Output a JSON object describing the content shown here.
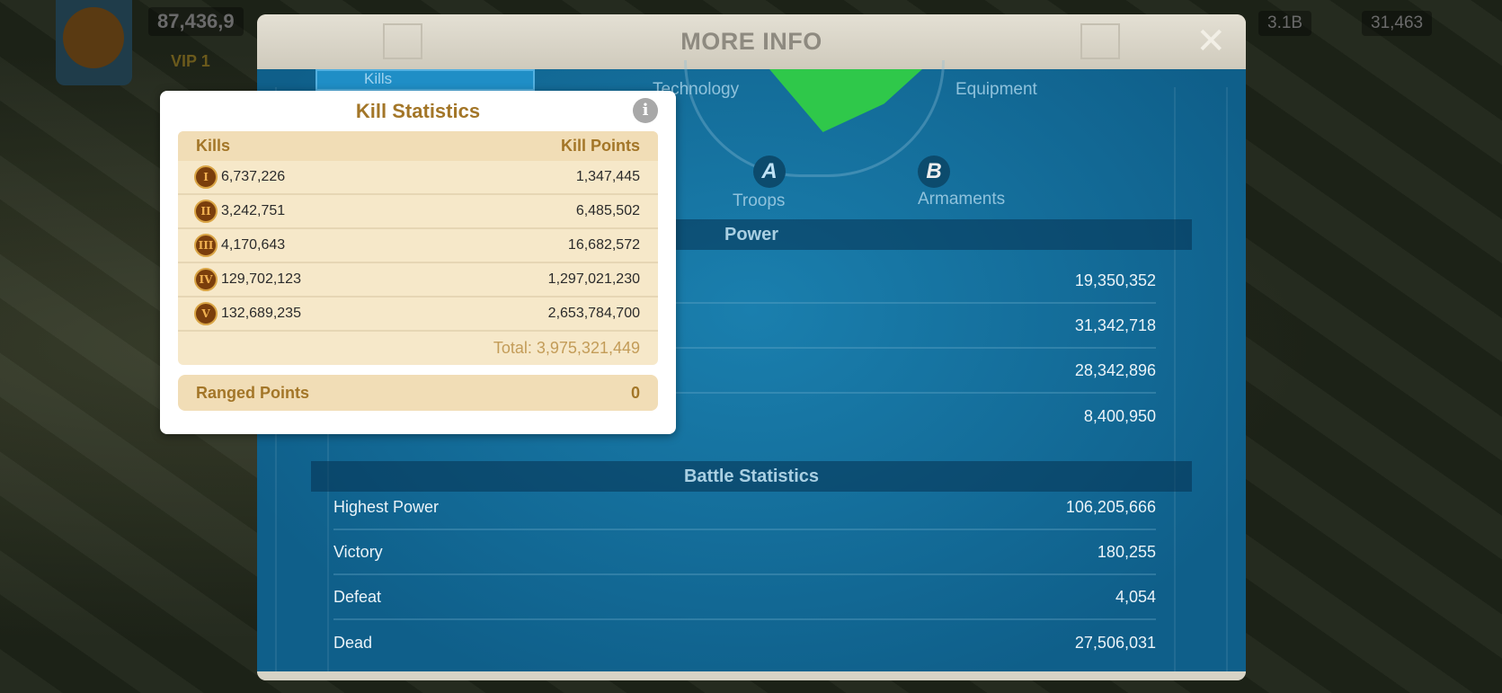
{
  "hud": {
    "power": "87,436,9",
    "vip": "VIP 1",
    "gold": "3.1B",
    "gems": "31,463"
  },
  "modal": {
    "title": "MORE INFO",
    "close_icon": "close-icon"
  },
  "radar": {
    "labels": {
      "technology": "Technology",
      "equipment": "Equipment",
      "troops": "Troops",
      "armaments": "Armaments"
    },
    "grades": {
      "troops": "A",
      "armaments": "B"
    },
    "fill_color": "#2fc84a"
  },
  "power": {
    "title": "Power",
    "rows": [
      {
        "value": "19,350,352"
      },
      {
        "value": "31,342,718"
      },
      {
        "value": "28,342,896"
      },
      {
        "value": "8,400,950"
      }
    ]
  },
  "battle": {
    "title": "Battle Statistics",
    "rows": [
      {
        "label": "Highest Power",
        "value": "106,205,666"
      },
      {
        "label": "Victory",
        "value": "180,255"
      },
      {
        "label": "Defeat",
        "value": "4,054"
      },
      {
        "label": "Dead",
        "value": "27,506,031"
      }
    ]
  },
  "tab": {
    "label": "Kills"
  },
  "kill_stats": {
    "title": "Kill Statistics",
    "col_kills": "Kills",
    "col_points": "Kill Points",
    "rows": [
      {
        "tier": "I",
        "kills": "6,737,226",
        "points": "1,347,445"
      },
      {
        "tier": "II",
        "kills": "3,242,751",
        "points": "6,485,502"
      },
      {
        "tier": "III",
        "kills": "4,170,643",
        "points": "16,682,572"
      },
      {
        "tier": "IV",
        "kills": "129,702,123",
        "points": "1,297,021,230"
      },
      {
        "tier": "V",
        "kills": "132,689,235",
        "points": "2,653,784,700"
      }
    ],
    "total": "Total: 3,975,321,449",
    "ranged_label": "Ranged Points",
    "ranged_value": "0"
  }
}
